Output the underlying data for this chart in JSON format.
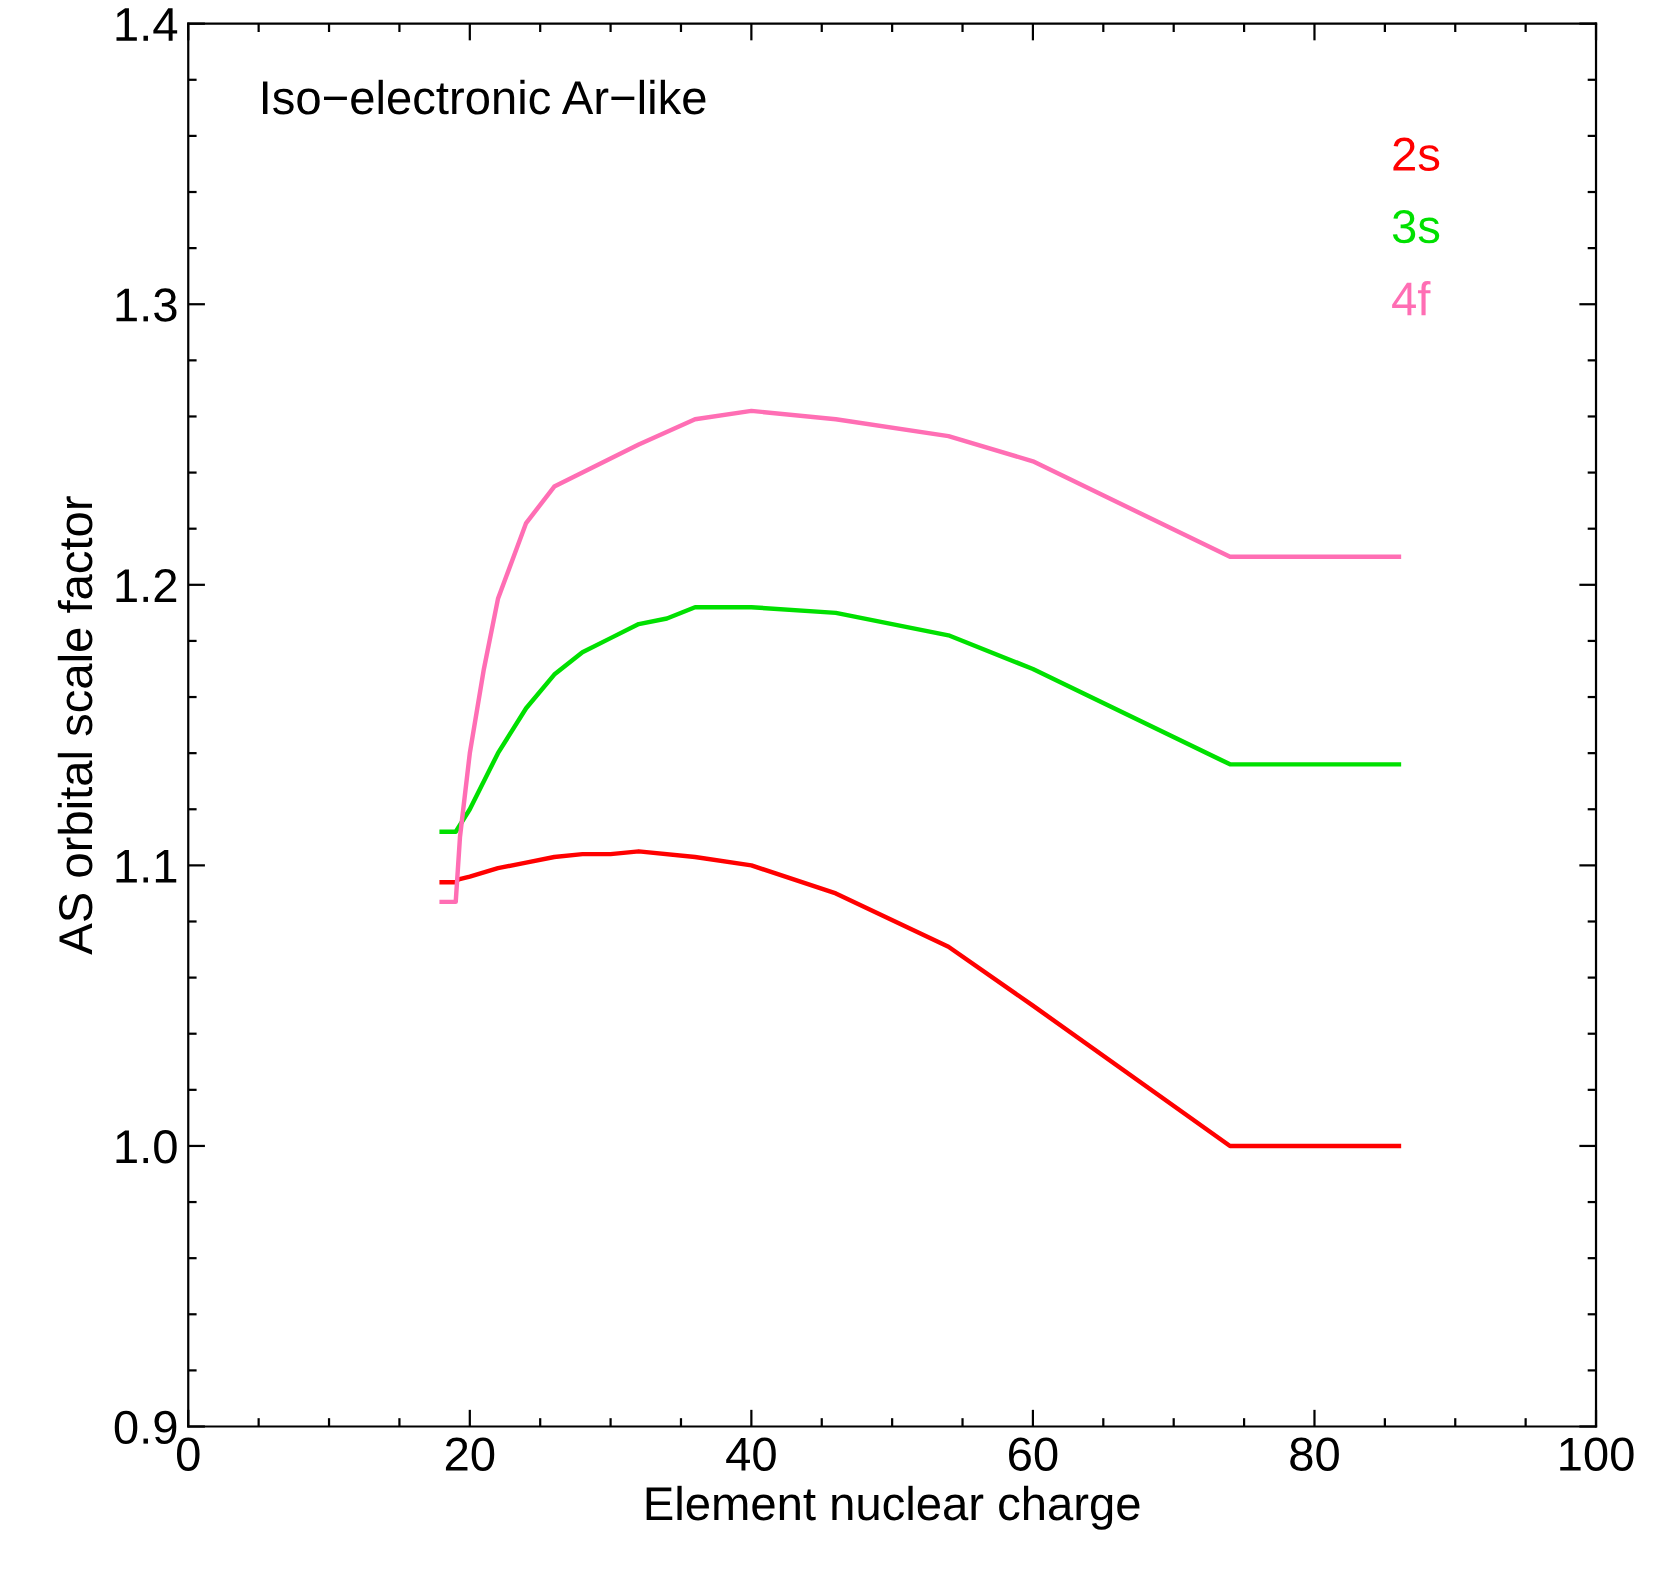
{
  "chart_data": {
    "type": "line",
    "xlabel": "Element nuclear charge",
    "ylabel": "AS orbital scale factor",
    "annotations": [
      "Iso−electronic Ar−like"
    ],
    "xlim": [
      0,
      100
    ],
    "ylim": [
      0.9,
      1.4
    ],
    "xticks": [
      0,
      {
        "value": 5,
        "label": null
      },
      {
        "value": 10,
        "label": null
      },
      {
        "value": 15,
        "label": null
      },
      20,
      {
        "value": 25,
        "label": null
      },
      {
        "value": 30,
        "label": null
      },
      {
        "value": 35,
        "label": null
      },
      40,
      {
        "value": 45,
        "label": null
      },
      {
        "value": 50,
        "label": null
      },
      {
        "value": 55,
        "label": null
      },
      60,
      {
        "value": 65,
        "label": null
      },
      {
        "value": 70,
        "label": null
      },
      {
        "value": 75,
        "label": null
      },
      80,
      {
        "value": 85,
        "label": null
      },
      {
        "value": 90,
        "label": null
      },
      {
        "value": 95,
        "label": null
      },
      100
    ],
    "yticks": [
      {
        "value": 0.9,
        "label": "0.9"
      },
      {
        "value": 0.92,
        "label": null
      },
      {
        "value": 0.94,
        "label": null
      },
      {
        "value": 0.96,
        "label": null
      },
      {
        "value": 0.98,
        "label": null
      },
      {
        "value": 1.0,
        "label": "1.0"
      },
      {
        "value": 1.02,
        "label": null
      },
      {
        "value": 1.04,
        "label": null
      },
      {
        "value": 1.06,
        "label": null
      },
      {
        "value": 1.08,
        "label": null
      },
      {
        "value": 1.1,
        "label": "1.1"
      },
      {
        "value": 1.12,
        "label": null
      },
      {
        "value": 1.14,
        "label": null
      },
      {
        "value": 1.16,
        "label": null
      },
      {
        "value": 1.18,
        "label": null
      },
      {
        "value": 1.2,
        "label": "1.2"
      },
      {
        "value": 1.22,
        "label": null
      },
      {
        "value": 1.24,
        "label": null
      },
      {
        "value": 1.26,
        "label": null
      },
      {
        "value": 1.28,
        "label": null
      },
      {
        "value": 1.3,
        "label": "1.3"
      },
      {
        "value": 1.32,
        "label": null
      },
      {
        "value": 1.34,
        "label": null
      },
      {
        "value": 1.36,
        "label": null
      },
      {
        "value": 1.38,
        "label": null
      },
      {
        "value": 1.4,
        "label": "1.4"
      }
    ],
    "grid": false,
    "legend": "top right",
    "marker": "none",
    "line_style": "solid",
    "series": [
      {
        "name": "2s",
        "color": "#ff0000",
        "x": [
          18,
          19,
          19.2,
          20,
          22,
          24,
          26,
          28,
          30,
          32,
          36,
          40,
          46,
          54,
          60,
          74,
          86
        ],
        "values": [
          1.094,
          1.094,
          1.095,
          1.096,
          1.099,
          1.101,
          1.103,
          1.104,
          1.104,
          1.105,
          1.103,
          1.1,
          1.09,
          1.071,
          1.05,
          1.0,
          1.0
        ]
      },
      {
        "name": "3s",
        "color": "#00e000",
        "x": [
          18,
          19,
          20,
          22,
          24,
          26,
          28,
          30,
          32,
          34,
          36,
          40,
          46,
          54,
          60,
          74,
          86
        ],
        "values": [
          1.112,
          1.112,
          1.12,
          1.14,
          1.156,
          1.168,
          1.176,
          1.181,
          1.186,
          1.188,
          1.192,
          1.192,
          1.19,
          1.182,
          1.17,
          1.136,
          1.136
        ]
      },
      {
        "name": "4f",
        "color": "#ff6eb4",
        "x": [
          18,
          19,
          19.3,
          20,
          21,
          22,
          24,
          26,
          28,
          32,
          36,
          40,
          46,
          54,
          60,
          74,
          86
        ],
        "values": [
          1.087,
          1.087,
          1.11,
          1.14,
          1.17,
          1.195,
          1.222,
          1.235,
          1.24,
          1.25,
          1.259,
          1.262,
          1.259,
          1.253,
          1.244,
          1.21,
          1.21
        ]
      }
    ]
  }
}
